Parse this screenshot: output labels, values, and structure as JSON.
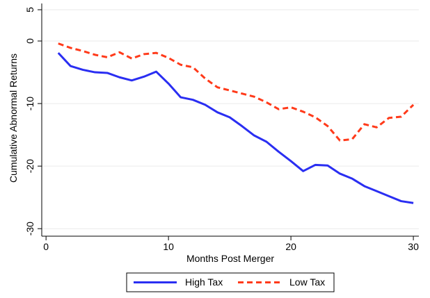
{
  "chart_data": {
    "type": "line",
    "x_label": "Months Post Merger",
    "y_label": "Cumulative Abnormal Returns",
    "x": [
      1,
      2,
      3,
      4,
      5,
      6,
      7,
      8,
      9,
      10,
      11,
      12,
      13,
      14,
      15,
      16,
      17,
      18,
      19,
      20,
      21,
      22,
      23,
      24,
      25,
      26,
      27,
      28,
      29,
      30
    ],
    "series": [
      {
        "name": "High Tax",
        "color": "#2a2ef2",
        "dashed": false,
        "values": [
          -1.9,
          -4.0,
          -4.6,
          -5.0,
          -5.1,
          -5.8,
          -6.3,
          -5.7,
          -4.9,
          -6.8,
          -9.0,
          -9.4,
          -10.2,
          -11.4,
          -12.2,
          -13.6,
          -15.1,
          -16.1,
          -17.7,
          -19.2,
          -20.8,
          -19.8,
          -19.9,
          -21.2,
          -22.0,
          -23.2,
          -24.0,
          -24.8,
          -25.6,
          -25.9
        ]
      },
      {
        "name": "Low Tax",
        "color": "#ff3a1a",
        "dashed": true,
        "values": [
          -0.4,
          -1.1,
          -1.6,
          -2.2,
          -2.6,
          -1.8,
          -2.8,
          -2.1,
          -1.9,
          -2.7,
          -3.8,
          -4.2,
          -6.0,
          -7.4,
          -7.9,
          -8.4,
          -8.9,
          -9.8,
          -10.9,
          -10.6,
          -11.3,
          -12.2,
          -13.6,
          -15.9,
          -15.7,
          -13.3,
          -13.8,
          -12.3,
          -12.1,
          -10.2
        ]
      }
    ],
    "xlim": [
      -0.35,
      30.45
    ],
    "ylim": [
      -31.2,
      6
    ],
    "xticks": [
      0,
      10,
      20,
      30
    ],
    "yticks": [
      -30,
      -20,
      -10,
      0,
      5
    ],
    "grid": true,
    "legend": "bottom"
  }
}
